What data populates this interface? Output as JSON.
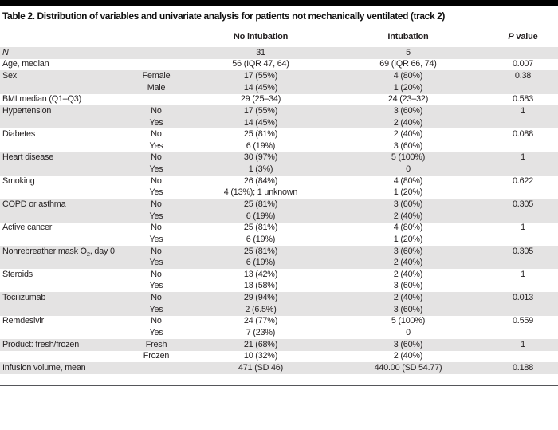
{
  "title": "Table 2. Distribution of variables and univariate analysis for patients not mechanically ventilated (track 2)",
  "columns": {
    "variable": "",
    "category": "",
    "no_intubation": "No intubation",
    "intubation": "Intubation",
    "p_italic": "P",
    "p_rest": " value"
  },
  "colors": {
    "band": "#e4e3e3",
    "top_bar": "#000000",
    "title_rule": "#4d4d4f",
    "bottom_rule": "#55565a",
    "text": "#231f20"
  },
  "rows": [
    {
      "variable": "N",
      "variable_italic": true,
      "category": "",
      "no_intubation": "31",
      "intubation": "5",
      "p_value": "",
      "shaded": true
    },
    {
      "variable": "Age, median",
      "variable_italic": false,
      "category": "",
      "no_intubation": "56 (IQR 47, 64)",
      "intubation": "69 (IQR 66, 74)",
      "p_value": "0.007",
      "shaded": false
    },
    {
      "variable": "Sex",
      "variable_italic": false,
      "category": "Female",
      "no_intubation": "17 (55%)",
      "intubation": "4 (80%)",
      "p_value": "0.38",
      "shaded": true
    },
    {
      "variable": "",
      "variable_italic": false,
      "category": "Male",
      "no_intubation": "14 (45%)",
      "intubation": "1 (20%)",
      "p_value": "",
      "shaded": true
    },
    {
      "variable": "BMI median (Q1–Q3)",
      "variable_italic": false,
      "category": "",
      "no_intubation": "29 (25–34)",
      "intubation": "24 (23–32)",
      "p_value": "0.583",
      "shaded": false
    },
    {
      "variable": "Hypertension",
      "variable_italic": false,
      "category": "No",
      "no_intubation": "17 (55%)",
      "intubation": "3 (60%)",
      "p_value": "1",
      "shaded": true
    },
    {
      "variable": "",
      "variable_italic": false,
      "category": "Yes",
      "no_intubation": "14 (45%)",
      "intubation": "2 (40%)",
      "p_value": "",
      "shaded": true
    },
    {
      "variable": "Diabetes",
      "variable_italic": false,
      "category": "No",
      "no_intubation": "25 (81%)",
      "intubation": "2 (40%)",
      "p_value": "0.088",
      "shaded": false
    },
    {
      "variable": "",
      "variable_italic": false,
      "category": "Yes",
      "no_intubation": "6 (19%)",
      "intubation": "3 (60%)",
      "p_value": "",
      "shaded": false
    },
    {
      "variable": "Heart disease",
      "variable_italic": false,
      "category": "No",
      "no_intubation": "30 (97%)",
      "intubation": "5 (100%)",
      "p_value": "1",
      "shaded": true
    },
    {
      "variable": "",
      "variable_italic": false,
      "category": "Yes",
      "no_intubation": "1 (3%)",
      "intubation": "0",
      "p_value": "",
      "shaded": true
    },
    {
      "variable": "Smoking",
      "variable_italic": false,
      "category": "No",
      "no_intubation": "26 (84%)",
      "intubation": "4 (80%)",
      "p_value": "0.622",
      "shaded": false
    },
    {
      "variable": "",
      "variable_italic": false,
      "category": "Yes",
      "no_intubation": "4 (13%); 1 unknown",
      "intubation": "1 (20%)",
      "p_value": "",
      "shaded": false
    },
    {
      "variable": "COPD or asthma",
      "variable_italic": false,
      "category": "No",
      "no_intubation": "25 (81%)",
      "intubation": "3 (60%)",
      "p_value": "0.305",
      "shaded": true
    },
    {
      "variable": "",
      "variable_italic": false,
      "category": "Yes",
      "no_intubation": "6 (19%)",
      "intubation": "2 (40%)",
      "p_value": "",
      "shaded": true
    },
    {
      "variable": "Active cancer",
      "variable_italic": false,
      "category": "No",
      "no_intubation": "25 (81%)",
      "intubation": "4 (80%)",
      "p_value": "1",
      "shaded": false
    },
    {
      "variable": "",
      "variable_italic": false,
      "category": "Yes",
      "no_intubation": "6 (19%)",
      "intubation": "1 (20%)",
      "p_value": "",
      "shaded": false
    },
    {
      "variable": "Nonrebreather mask O~2~, day 0",
      "variable_italic": false,
      "category": "No",
      "no_intubation": "25 (81%)",
      "intubation": "3 (60%)",
      "p_value": "0.305",
      "shaded": true
    },
    {
      "variable": "",
      "variable_italic": false,
      "category": "Yes",
      "no_intubation": "6 (19%)",
      "intubation": "2 (40%)",
      "p_value": "",
      "shaded": true
    },
    {
      "variable": "Steroids",
      "variable_italic": false,
      "category": "No",
      "no_intubation": "13 (42%)",
      "intubation": "2 (40%)",
      "p_value": "1",
      "shaded": false
    },
    {
      "variable": "",
      "variable_italic": false,
      "category": "Yes",
      "no_intubation": "18 (58%)",
      "intubation": "3 (60%)",
      "p_value": "",
      "shaded": false
    },
    {
      "variable": "Tocilizumab",
      "variable_italic": false,
      "category": "No",
      "no_intubation": "29 (94%)",
      "intubation": "2 (40%)",
      "p_value": "0.013",
      "shaded": true
    },
    {
      "variable": "",
      "variable_italic": false,
      "category": "Yes",
      "no_intubation": "2 (6.5%)",
      "intubation": "3 (60%)",
      "p_value": "",
      "shaded": true
    },
    {
      "variable": "Remdesivir",
      "variable_italic": false,
      "category": "No",
      "no_intubation": "24 (77%)",
      "intubation": "5 (100%)",
      "p_value": "0.559",
      "shaded": false
    },
    {
      "variable": "",
      "variable_italic": false,
      "category": "Yes",
      "no_intubation": "7 (23%)",
      "intubation": "0",
      "p_value": "",
      "shaded": false
    },
    {
      "variable": "Product: fresh/frozen",
      "variable_italic": false,
      "category": "Fresh",
      "no_intubation": "21 (68%)",
      "intubation": "3 (60%)",
      "p_value": "1",
      "shaded": true
    },
    {
      "variable": "",
      "variable_italic": false,
      "category": "Frozen",
      "no_intubation": "10 (32%)",
      "intubation": "2 (40%)",
      "p_value": "",
      "shaded": false
    },
    {
      "variable": "Infusion volume, mean",
      "variable_italic": false,
      "category": "",
      "no_intubation": "471 (SD 46)",
      "intubation": "440.00 (SD 54.77)",
      "p_value": "0.188",
      "shaded": true
    }
  ]
}
